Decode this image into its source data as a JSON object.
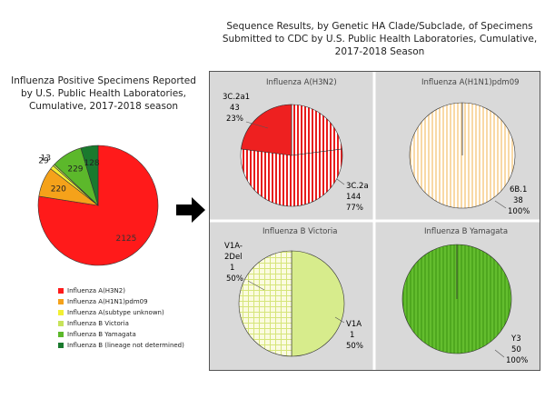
{
  "titles": {
    "left": "Influenza Positive Specimens Reported by U.S. Public Health Laboratories, Cumulative, 2017-2018 season",
    "right": "Sequence Results, by Genetic HA Clade/Subclade, of Specimens Submitted to CDC by U.S. Public Health Laboratories, Cumulative, 2017-2018 Season"
  },
  "colors": {
    "h3n2": "#ff1a1a",
    "h1n1": "#f5a21a",
    "unknown": "#f2ef34",
    "victoria": "#c7e35a",
    "yamagata": "#5cb82b",
    "lineage_nd": "#1a7a2e",
    "panel_bg": "#d9d9d9",
    "cream": "#fde9c6"
  },
  "chart_data": [
    {
      "type": "pie",
      "title": "Influenza Positive Specimens Reported by U.S. Public Health Laboratories, Cumulative, 2017-2018 season",
      "categories": [
        "Influenza A(H3N2)",
        "Influenza A(H1N1)pdm09",
        "Influenza A(subtype unknown)",
        "Influenza B Victoria",
        "Influenza B Yamagata",
        "Influenza B (lineage not determined)"
      ],
      "values": [
        2125,
        220,
        29,
        13,
        229,
        128
      ],
      "value_labels": [
        "2125",
        "220",
        "29",
        "13",
        "229",
        "128"
      ],
      "legend": "bottom-left"
    },
    {
      "type": "pie",
      "title": "Influenza A(H3N2)",
      "categories": [
        "3C.2a1",
        "3C.2a"
      ],
      "values": [
        43,
        144
      ],
      "percents": [
        "23%",
        "77%"
      ],
      "values_text": [
        "43",
        "144"
      ]
    },
    {
      "type": "pie",
      "title": "Influenza A(H1N1)pdm09",
      "categories": [
        "6B.1"
      ],
      "values": [
        38
      ],
      "percents": [
        "100%"
      ],
      "values_text": [
        "38"
      ]
    },
    {
      "type": "pie",
      "title": "Influenza B Victoria",
      "categories": [
        "V1A-2Del",
        "V1A"
      ],
      "category_lines": [
        [
          "V1A-",
          "2Del"
        ],
        [
          "V1A"
        ]
      ],
      "values": [
        1,
        1
      ],
      "percents": [
        "50%",
        "50%"
      ],
      "values_text": [
        "1",
        "1"
      ]
    },
    {
      "type": "pie",
      "title": "Influenza B Yamagata",
      "categories": [
        "Y3"
      ],
      "values": [
        50
      ],
      "percents": [
        "100%"
      ],
      "values_text": [
        "50"
      ]
    }
  ]
}
